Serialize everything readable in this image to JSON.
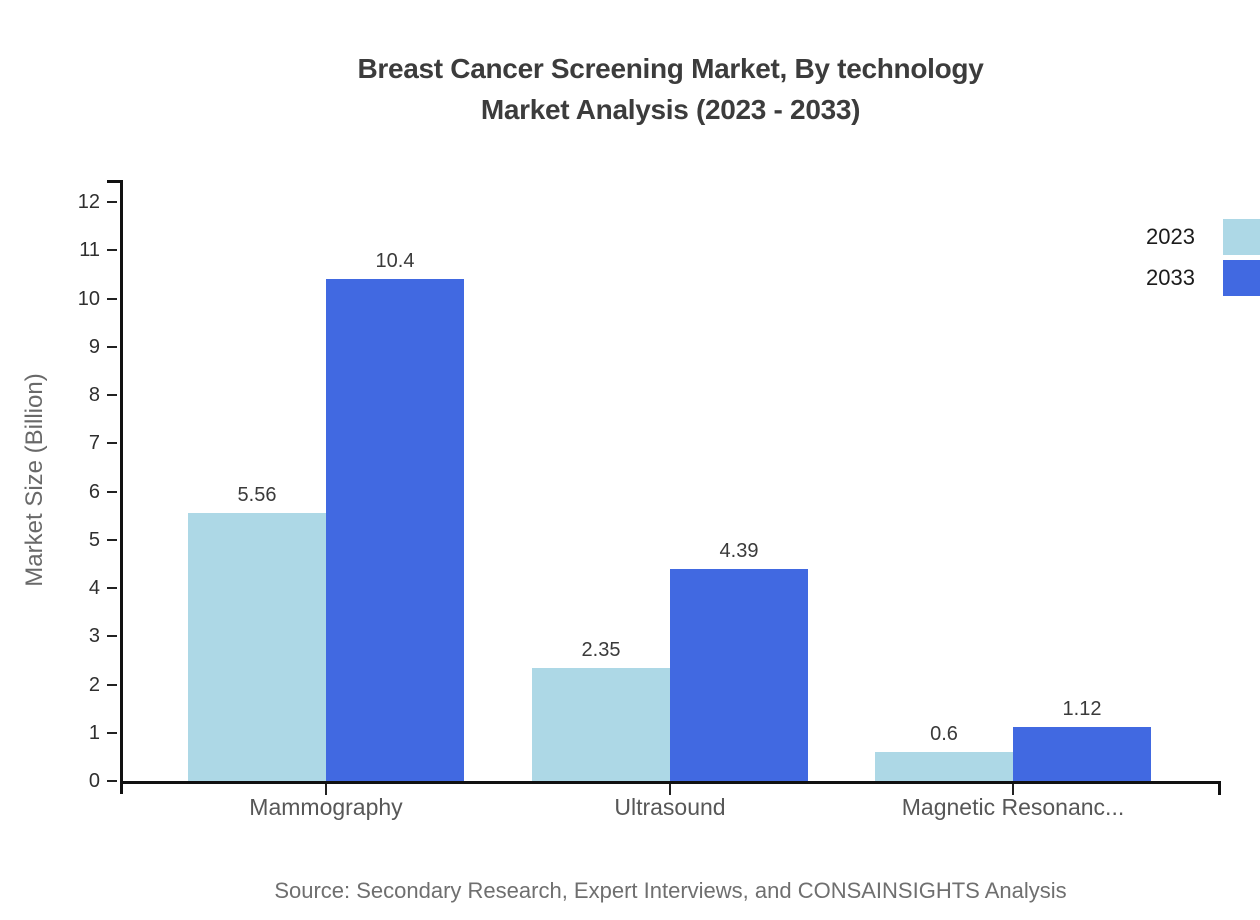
{
  "page": {
    "background": "#ffffff"
  },
  "chart_data": {
    "type": "bar",
    "title": "Breast Cancer Screening Market, By technology Market Analysis (2023 - 2033)",
    "title_line1": "Breast Cancer Screening Market, By technology",
    "title_line2": "Market Analysis (2023 - 2033)",
    "ylabel": "Market Size (Billion)",
    "xlabel": "",
    "categories": [
      "Mammography",
      "Ultrasound",
      "Magnetic Resonanc..."
    ],
    "series": [
      {
        "name": "2023",
        "color": "#ADD8E6",
        "values": [
          5.56,
          2.35,
          0.6
        ]
      },
      {
        "name": "2033",
        "color": "#4169E1",
        "values": [
          10.4,
          4.39,
          1.12
        ]
      }
    ],
    "ylim": [
      0,
      12
    ],
    "ytick_step": 1,
    "grid": false,
    "legend_position": "top-right",
    "axis_color": "#111111",
    "title_color": "#3c3c3c",
    "source": "Source: Secondary Research, Expert Interviews, and CONSAINSIGHTS Analysis"
  }
}
